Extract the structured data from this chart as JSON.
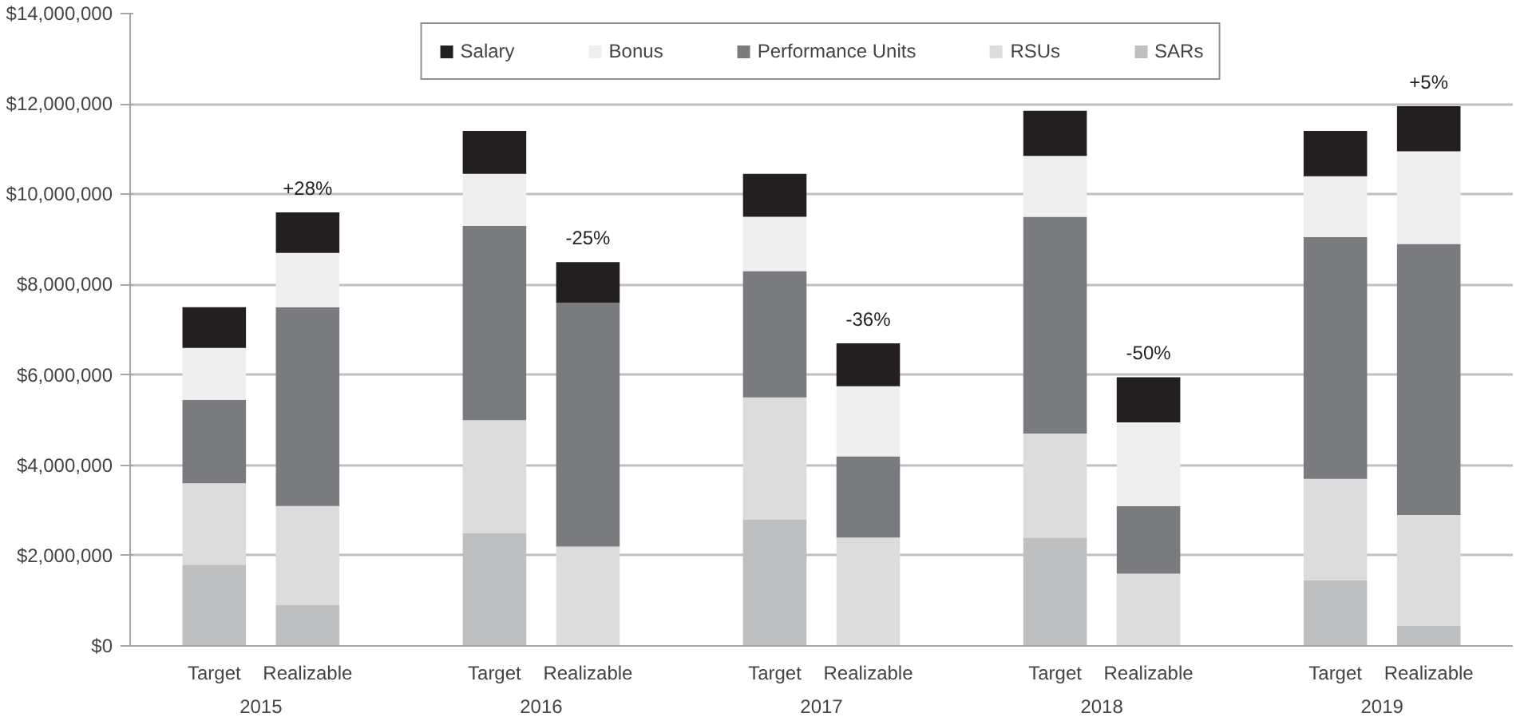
{
  "chart_data": {
    "type": "bar",
    "stacked": true,
    "categories": [
      "Target",
      "Realizable",
      "Target",
      "Realizable",
      "Target",
      "Realizable",
      "Target",
      "Realizable",
      "Target",
      "Realizable"
    ],
    "annotations": [
      "2015",
      "2016",
      "2017",
      "2018",
      "2019",
      "+28%",
      "-25%",
      "-36%",
      "-50%",
      "+5%"
    ],
    "series": [
      {
        "name": "SARs",
        "color": "#bebfc1",
        "values": [
          1800000,
          900000,
          2500000,
          0,
          2800000,
          0,
          2400000,
          0,
          1450000,
          450000
        ]
      },
      {
        "name": "RSUs",
        "color": "#dcdcdd",
        "values": [
          1800000,
          2200000,
          2500000,
          2200000,
          2700000,
          2400000,
          2300000,
          1600000,
          2250000,
          2450000
        ]
      },
      {
        "name": "Performance Units",
        "color": "#7a7b7e",
        "values": [
          1850000,
          4400000,
          4300000,
          5400000,
          2800000,
          1800000,
          4800000,
          1500000,
          5350000,
          6000000
        ]
      },
      {
        "name": "Bonus",
        "color": "#efefef",
        "values": [
          1150000,
          1200000,
          1150000,
          0,
          1200000,
          1550000,
          1350000,
          1850000,
          1350000,
          2050000
        ]
      },
      {
        "name": "Salary",
        "color": "#231f20",
        "values": [
          900000,
          900000,
          950000,
          900000,
          950000,
          950000,
          1000000,
          1000000,
          1000000,
          1000000
        ]
      }
    ],
    "ylim": [
      0,
      14000000
    ],
    "yticks": [
      {
        "value": 0,
        "label": "$0"
      },
      {
        "value": 2000000,
        "label": "$2,000,000"
      },
      {
        "value": 4000000,
        "label": "$4,000,000"
      },
      {
        "value": 6000000,
        "label": "$6,000,000"
      },
      {
        "value": 8000000,
        "label": "$8,000,000"
      },
      {
        "value": 10000000,
        "label": "$10,000,000"
      },
      {
        "value": 12000000,
        "label": "$12,000,000"
      },
      {
        "value": 14000000,
        "label": "$14,000,000"
      }
    ],
    "grid": "y",
    "legend": "top"
  }
}
